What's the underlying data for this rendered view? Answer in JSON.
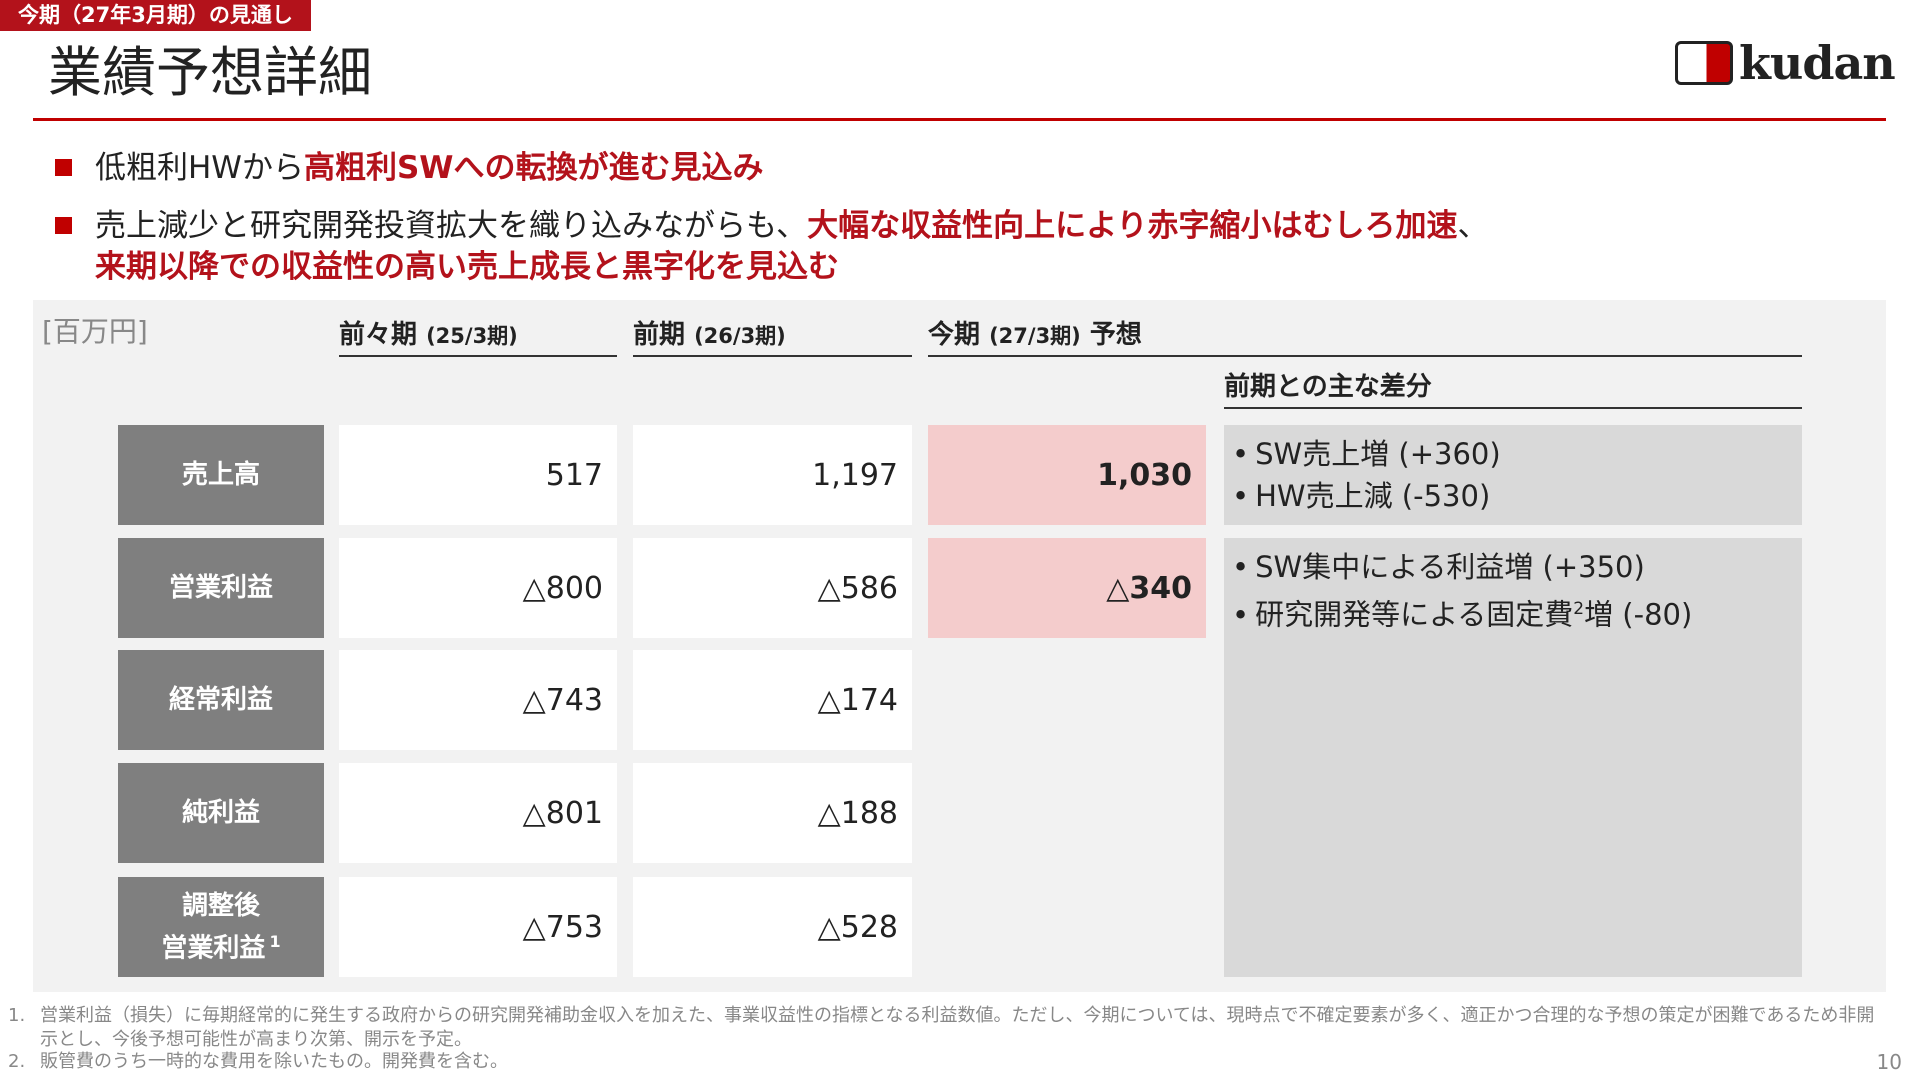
{
  "header": {
    "tag": "今期（27年3月期）の見通し",
    "title": "業績予想詳細",
    "logo": "kudan"
  },
  "bullets": [
    {
      "lines": [
        [
          {
            "text": "低粗利HWから",
            "emphasis": false
          },
          {
            "text": "高粗利SWへの転換が進む見込み",
            "emphasis": true
          }
        ]
      ]
    },
    {
      "lines": [
        [
          {
            "text": "売上減少と研究開発投資拡大を織り込みながらも、",
            "emphasis": false
          },
          {
            "text": "大幅な収益性向上により赤字縮小はむしろ加速",
            "emphasis": true
          },
          {
            "text": "、",
            "emphasis": false
          }
        ],
        [
          {
            "text": "来期以降での収益性の高い売上成長と黒字化を見込む",
            "emphasis": true
          }
        ]
      ]
    }
  ],
  "table": {
    "unit": "[百万円]",
    "columns": [
      {
        "name": "前々期",
        "period": "(25/3期)"
      },
      {
        "name": "前期",
        "period": "(26/3期)"
      },
      {
        "name": "今期",
        "period": "(27/3期)",
        "suffix": "予想"
      }
    ],
    "diff_header": "前期との主な差分",
    "rows": [
      {
        "label": [
          "売上高"
        ],
        "values": [
          "517",
          "1,197",
          "1,030"
        ],
        "diffs": [
          {
            "text": "SW売上増 (+360)"
          },
          {
            "text": "HW売上減 (-530)"
          }
        ]
      },
      {
        "label": [
          "営業利益"
        ],
        "values": [
          "△800",
          "△586",
          "△340"
        ],
        "diffs": [
          {
            "text": "SW集中による利益増 (+350)"
          },
          {
            "text": "研究開発等による固定費",
            "note": "2",
            "after": "増 (-80)"
          }
        ]
      },
      {
        "label": [
          "経常利益"
        ],
        "values": [
          "△743",
          "△174"
        ]
      },
      {
        "label": [
          "純利益"
        ],
        "values": [
          "△801",
          "△188"
        ]
      },
      {
        "label": [
          "調整後",
          "営業利益"
        ],
        "note": "1",
        "values": [
          "△753",
          "△528"
        ]
      }
    ]
  },
  "footnotes": [
    {
      "marker": "1.",
      "text": "営業利益（損失）に毎期経常的に発生する政府からの研究開発補助金収入を加えた、事業収益性の指標となる利益数値。ただし、今期については、現時点で不確定要素が多く、適正かつ合理的な予想の策定が困難であるため非開示とし、今後予想可能性が高まり次第、開示を予定。"
    },
    {
      "marker": "2.",
      "text": "販管費のうち一時的な費用を除いたもの。開発費を含む。"
    }
  ],
  "page_number": "10"
}
